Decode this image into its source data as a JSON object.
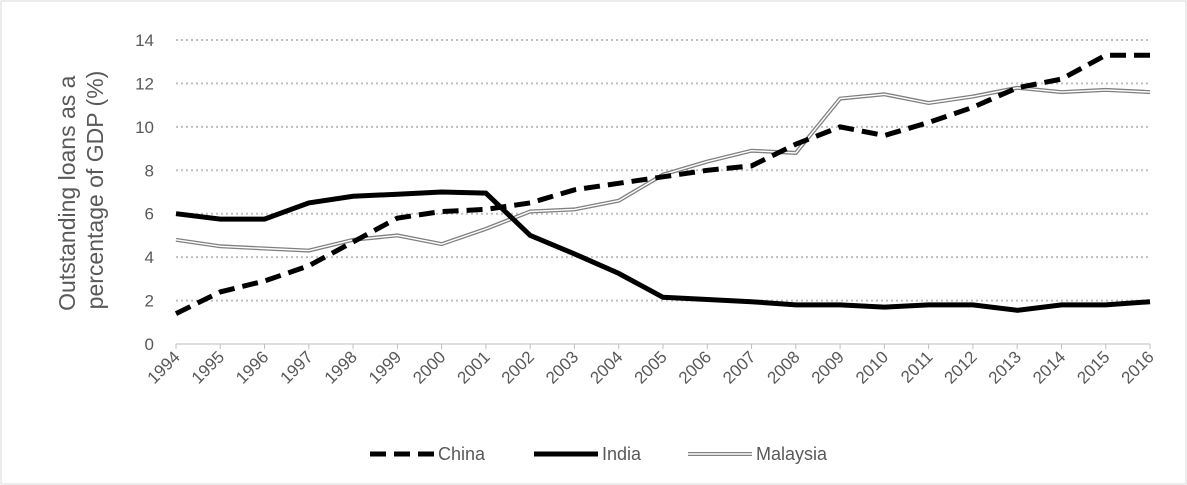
{
  "chart_data": {
    "type": "line",
    "title": "",
    "xlabel": "",
    "ylabel_lines": [
      "Outstanding loans as a",
      "percentage of GDP (%)"
    ],
    "ylim": [
      0,
      14
    ],
    "yticks": [
      0,
      2,
      4,
      6,
      8,
      10,
      12,
      14
    ],
    "grid": "horizontal-dotted",
    "legend": "bottom",
    "categories": [
      "1994",
      "1995",
      "1996",
      "1997",
      "1998",
      "1999",
      "2000",
      "2001",
      "2002",
      "2003",
      "2004",
      "2005",
      "2006",
      "2007",
      "2008",
      "2009",
      "2010",
      "2011",
      "2012",
      "2013",
      "2014",
      "2015",
      "2016"
    ],
    "series": [
      {
        "name": "China",
        "style": "dashed",
        "color": "#000000",
        "values": [
          1.4,
          2.4,
          2.9,
          3.6,
          4.7,
          5.8,
          6.1,
          6.2,
          6.5,
          7.1,
          7.4,
          7.7,
          8.0,
          8.2,
          9.2,
          10.0,
          9.6,
          10.2,
          10.9,
          11.8,
          12.2,
          13.3,
          13.3
        ]
      },
      {
        "name": "India",
        "style": "solid-thick",
        "color": "#000000",
        "values": [
          6.0,
          5.75,
          5.75,
          6.5,
          6.8,
          6.9,
          7.0,
          6.95,
          5.0,
          4.15,
          3.25,
          2.15,
          2.05,
          1.95,
          1.8,
          1.8,
          1.7,
          1.8,
          1.8,
          1.55,
          1.8,
          1.8,
          1.95
        ]
      },
      {
        "name": "Malaysia",
        "style": "double-gray",
        "color": "#808080",
        "values": [
          4.8,
          4.5,
          4.4,
          4.3,
          4.8,
          5.0,
          4.6,
          5.3,
          6.1,
          6.2,
          6.6,
          7.8,
          8.4,
          8.9,
          8.8,
          11.3,
          11.5,
          11.1,
          11.4,
          11.8,
          11.6,
          11.7,
          11.6
        ]
      }
    ]
  }
}
